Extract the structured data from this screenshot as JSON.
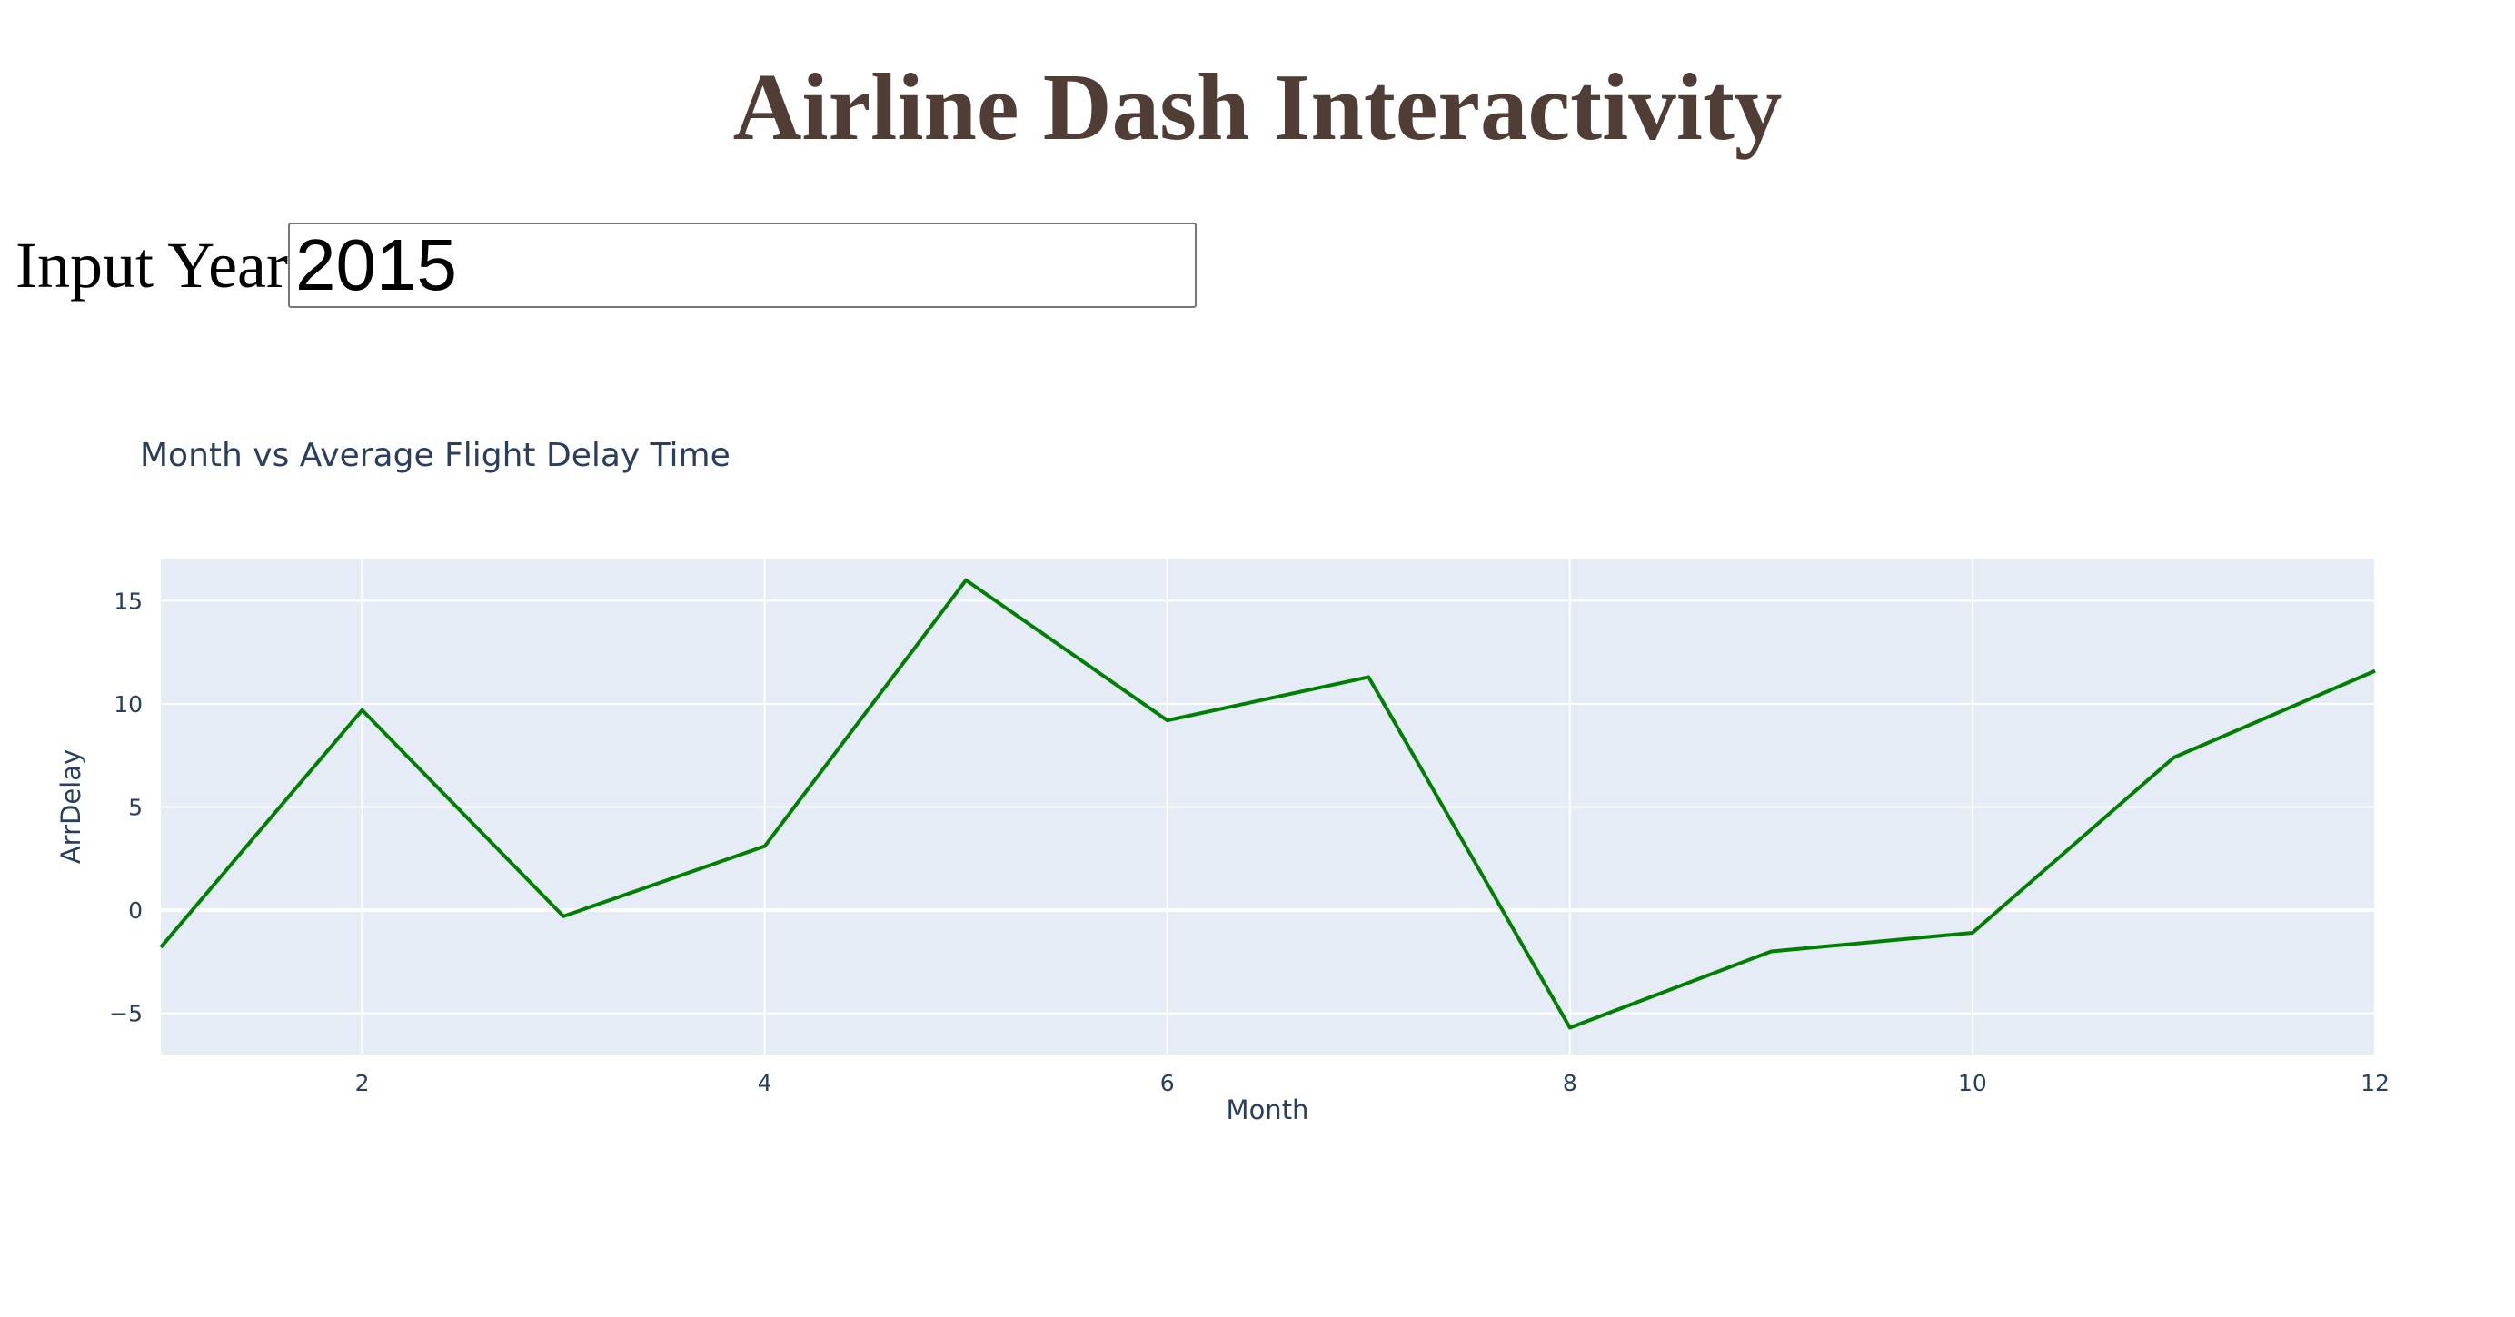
{
  "header": {
    "title": "Airline Dash Interactivity"
  },
  "input": {
    "label": "Input Year",
    "value": "2015"
  },
  "chart_data": {
    "type": "line",
    "title": "Month vs Average Flight Delay Time",
    "xlabel": "Month",
    "ylabel": "ArrDelay",
    "x": [
      1,
      2,
      3,
      4,
      5,
      6,
      7,
      8,
      9,
      10,
      11,
      12
    ],
    "series": [
      {
        "values": [
          -1.8,
          9.7,
          -0.3,
          3.1,
          16.0,
          9.2,
          11.3,
          -5.7,
          -2.0,
          -1.1,
          7.4,
          11.6
        ],
        "color": "#008000"
      }
    ],
    "xlim": [
      1,
      12
    ],
    "ylim": [
      -7,
      17
    ],
    "xticks": [
      2,
      4,
      6,
      8,
      10,
      12
    ],
    "yticks": [
      -5,
      0,
      5,
      10,
      15
    ],
    "grid": true,
    "colors": {
      "plot_background": "#E5ECF6",
      "grid": "#ffffff",
      "text": "#2a3f5f"
    }
  }
}
